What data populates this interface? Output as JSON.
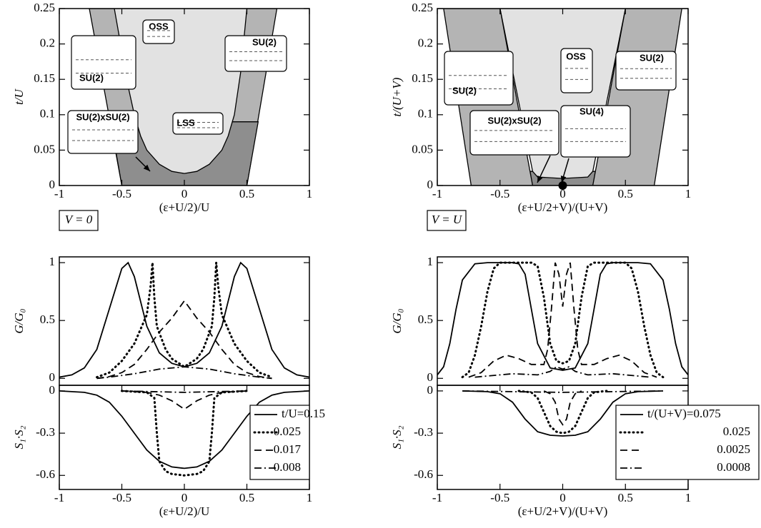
{
  "chart_data": [
    {
      "type": "phase",
      "xlim": [
        -1,
        1
      ],
      "ylim": [
        0,
        0.25
      ],
      "xticks": [
        -1,
        -0.5,
        0,
        0.5,
        1
      ],
      "yticks": [
        0,
        0.05,
        0.1,
        0.15,
        0.2,
        0.25
      ],
      "xlabel": "(ε+U/2)/U",
      "ylabel": "t/U",
      "annotation": "V = 0",
      "grid": false,
      "insets": [
        "SU(2)",
        "OSS",
        "SU(2)",
        "SU(2)xSU(2)",
        "LSS"
      ],
      "series": [
        {
          "color": "#b4b4b4",
          "x": [
            -0.76,
            -0.5,
            0.5,
            0.74
          ],
          "values": [
            0.25,
            0,
            0,
            0.25
          ]
        },
        {
          "color": "#8e8e8e",
          "x": [
            -0.5,
            0.5,
            0.59,
            -0.59
          ],
          "values": [
            0,
            0,
            0.09,
            0.09
          ]
        },
        {
          "color": "#e2e2e2",
          "x": [
            -0.56,
            -0.5,
            -0.45,
            -0.4,
            -0.35,
            -0.3,
            -0.2,
            -0.1,
            0,
            0.1,
            0.2,
            0.3,
            0.35,
            0.4,
            0.45,
            0.5
          ],
          "values": [
            0.25,
            0.19,
            0.14,
            0.1,
            0.07,
            0.05,
            0.03,
            0.02,
            0.017,
            0.02,
            0.03,
            0.05,
            0.07,
            0.1,
            0.16,
            0.25
          ]
        }
      ]
    },
    {
      "type": "phase",
      "xlim": [
        -1,
        1
      ],
      "ylim": [
        0,
        0.25
      ],
      "xticks": [
        -1,
        -0.5,
        0,
        0.5,
        1
      ],
      "yticks": [
        0,
        0.05,
        0.1,
        0.15,
        0.2,
        0.25
      ],
      "xlabel": "(ε+U/2+V)/(U+V)",
      "ylabel": "t/(U+V)",
      "annotation": "V = U",
      "grid": false,
      "insets": [
        "SU(2)",
        "OSS",
        "SU(2)",
        "SU(2)xSU(2)",
        "SU(4)"
      ],
      "marker": {
        "x": 0,
        "y": 0
      },
      "series": [
        {
          "color": "#8e8e8e",
          "x": [
            -0.245,
            0.245,
            0.26,
            -0.26
          ],
          "values": [
            0,
            0,
            0.02,
            0.02
          ]
        },
        {
          "color": "#e2e2e2",
          "x": [
            -0.5,
            -0.24,
            -0.2,
            0,
            0.2,
            0.24,
            0.5
          ],
          "values": [
            0.25,
            0.02,
            0.012,
            0.01,
            0.012,
            0.02,
            0.25
          ]
        },
        {
          "color": "#b4b4b4",
          "x": [
            -0.95,
            -0.5,
            -0.24,
            -0.73
          ],
          "values": [
            0.25,
            0.25,
            0,
            0
          ]
        },
        {
          "color": "#b4b4b4",
          "x": [
            0.5,
            0.95,
            0.73,
            0.24
          ],
          "values": [
            0.25,
            0.25,
            0,
            0
          ]
        }
      ]
    },
    {
      "type": "line",
      "xlim": [
        -1,
        1
      ],
      "ylim": [
        -0.06,
        1.05
      ],
      "yticks": [
        0,
        0.5,
        1
      ],
      "ylabel": "G/G₀",
      "grid": false,
      "series": [
        {
          "dash": "solid",
          "color": "#000000",
          "x": [
            -1,
            -0.9,
            -0.8,
            -0.7,
            -0.6,
            -0.5,
            -0.45,
            -0.4,
            -0.3,
            -0.2,
            -0.1,
            0,
            0.1,
            0.2,
            0.3,
            0.4,
            0.45,
            0.5,
            0.6,
            0.7,
            0.8,
            0.9,
            1
          ],
          "values": [
            0.01,
            0.03,
            0.09,
            0.25,
            0.6,
            0.95,
            1,
            0.88,
            0.45,
            0.22,
            0.13,
            0.1,
            0.13,
            0.22,
            0.45,
            0.88,
            1,
            0.95,
            0.6,
            0.25,
            0.09,
            0.03,
            0.01
          ]
        },
        {
          "dash": "dotted",
          "color": "#000000",
          "x": [
            -0.7,
            -0.6,
            -0.5,
            -0.4,
            -0.3,
            -0.27,
            -0.255,
            -0.24,
            -0.22,
            -0.15,
            -0.1,
            0,
            0.1,
            0.15,
            0.22,
            0.24,
            0.255,
            0.27,
            0.3,
            0.4,
            0.5,
            0.6,
            0.7
          ],
          "values": [
            0.01,
            0.05,
            0.15,
            0.3,
            0.55,
            0.8,
            1.0,
            0.7,
            0.45,
            0.25,
            0.17,
            0.1,
            0.17,
            0.25,
            0.45,
            0.7,
            1.0,
            0.8,
            0.55,
            0.3,
            0.15,
            0.05,
            0.01
          ]
        },
        {
          "dash": "dashed",
          "color": "#000000",
          "x": [
            -0.7,
            -0.6,
            -0.5,
            -0.4,
            -0.3,
            -0.2,
            -0.1,
            0,
            0.1,
            0.2,
            0.3,
            0.4,
            0.5,
            0.6,
            0.7
          ],
          "values": [
            0,
            0.015,
            0.05,
            0.12,
            0.25,
            0.4,
            0.52,
            0.67,
            0.52,
            0.4,
            0.25,
            0.12,
            0.05,
            0.015,
            0
          ]
        },
        {
          "dash": "dashdot",
          "color": "#000000",
          "x": [
            -0.7,
            -0.6,
            -0.4,
            -0.2,
            0,
            0.2,
            0.4,
            0.6,
            0.7
          ],
          "values": [
            0,
            0.01,
            0.04,
            0.08,
            0.1,
            0.08,
            0.04,
            0.01,
            0
          ]
        }
      ]
    },
    {
      "type": "line",
      "xlim": [
        -1,
        1
      ],
      "ylim": [
        -0.06,
        1.05
      ],
      "yticks": [
        0,
        0.5,
        1
      ],
      "ylabel": "G/G₀",
      "grid": false,
      "series": [
        {
          "dash": "solid",
          "color": "#000000",
          "x": [
            -1,
            -0.95,
            -0.9,
            -0.85,
            -0.8,
            -0.7,
            -0.6,
            -0.4,
            -0.35,
            -0.3,
            -0.25,
            -0.2,
            -0.1,
            0,
            0.1,
            0.2,
            0.25,
            0.3,
            0.35,
            0.4,
            0.6,
            0.7,
            0.8,
            0.85,
            0.9,
            0.95,
            1
          ],
          "values": [
            0.03,
            0.1,
            0.3,
            0.6,
            0.85,
            0.99,
            1,
            1,
            0.99,
            0.9,
            0.6,
            0.3,
            0.09,
            0.07,
            0.09,
            0.3,
            0.6,
            0.9,
            0.99,
            1,
            1,
            0.99,
            0.85,
            0.6,
            0.3,
            0.1,
            0.03
          ]
        },
        {
          "dash": "dotted",
          "color": "#000000",
          "x": [
            -0.8,
            -0.75,
            -0.7,
            -0.65,
            -0.6,
            -0.55,
            -0.5,
            -0.25,
            -0.2,
            -0.15,
            -0.1,
            -0.05,
            0,
            0.05,
            0.1,
            0.15,
            0.2,
            0.25,
            0.5,
            0.55,
            0.6,
            0.65,
            0.7,
            0.75,
            0.8
          ],
          "values": [
            0.01,
            0.05,
            0.2,
            0.45,
            0.75,
            0.95,
            1,
            1,
            0.97,
            0.7,
            0.3,
            0.15,
            0.13,
            0.15,
            0.3,
            0.7,
            0.97,
            1,
            1,
            0.95,
            0.75,
            0.45,
            0.2,
            0.05,
            0.01
          ]
        },
        {
          "dash": "dashed",
          "color": "#000000",
          "x": [
            -0.75,
            -0.65,
            -0.55,
            -0.45,
            -0.35,
            -0.25,
            -0.15,
            -0.12,
            -0.09,
            -0.06,
            -0.03,
            0,
            0.03,
            0.06,
            0.09,
            0.12,
            0.15,
            0.25,
            0.35,
            0.45,
            0.55,
            0.65,
            0.75
          ],
          "values": [
            0.01,
            0.05,
            0.15,
            0.2,
            0.17,
            0.12,
            0.12,
            0.25,
            0.6,
            1,
            0.9,
            0.62,
            0.9,
            1,
            0.6,
            0.25,
            0.12,
            0.12,
            0.17,
            0.2,
            0.15,
            0.05,
            0.01
          ]
        },
        {
          "dash": "dashdot",
          "color": "#000000",
          "x": [
            -0.7,
            -0.5,
            -0.4,
            -0.2,
            -0.1,
            -0.05,
            0,
            0.05,
            0.1,
            0.2,
            0.4,
            0.5,
            0.7
          ],
          "values": [
            0.01,
            0.03,
            0.04,
            0.03,
            0.06,
            0.1,
            0.08,
            0.1,
            0.06,
            0.03,
            0.04,
            0.03,
            0.01
          ]
        }
      ]
    },
    {
      "type": "line",
      "xlim": [
        -1,
        1
      ],
      "ylim": [
        -0.7,
        0.04
      ],
      "xticks": [
        -1,
        -0.5,
        0,
        0.5,
        1
      ],
      "yticks": [
        0,
        -0.3,
        -0.6
      ],
      "xlabel": "(ε+U/2)/U",
      "ylabel": "S₁·S₂",
      "legend": "lower right",
      "grid": false,
      "series": [
        {
          "name": "t/U=0.15",
          "dash": "solid",
          "color": "#000000",
          "x": [
            -1,
            -0.8,
            -0.7,
            -0.6,
            -0.5,
            -0.4,
            -0.3,
            -0.2,
            -0.1,
            0,
            0.1,
            0.2,
            0.3,
            0.4,
            0.5,
            0.6,
            0.7,
            0.8,
            1
          ],
          "values": [
            0,
            -0.01,
            -0.03,
            -0.08,
            -0.18,
            -0.3,
            -0.42,
            -0.5,
            -0.54,
            -0.55,
            -0.54,
            -0.5,
            -0.42,
            -0.3,
            -0.18,
            -0.08,
            -0.03,
            -0.01,
            0
          ]
        },
        {
          "name": "0.025",
          "dash": "dotted",
          "color": "#000000",
          "x": [
            -0.5,
            -0.3,
            -0.24,
            -0.22,
            -0.2,
            -0.15,
            -0.1,
            0,
            0.1,
            0.15,
            0.2,
            0.22,
            0.24,
            0.3,
            0.5
          ],
          "values": [
            0,
            -0.01,
            -0.05,
            -0.3,
            -0.5,
            -0.57,
            -0.59,
            -0.6,
            -0.59,
            -0.57,
            -0.5,
            -0.3,
            -0.05,
            -0.01,
            0
          ]
        },
        {
          "name": "0.017",
          "dash": "dashed",
          "color": "#000000",
          "x": [
            -0.5,
            -0.3,
            -0.2,
            -0.1,
            -0.05,
            0,
            0.05,
            0.1,
            0.2,
            0.3,
            0.5
          ],
          "values": [
            0,
            -0.01,
            -0.03,
            -0.07,
            -0.1,
            -0.13,
            -0.1,
            -0.07,
            -0.03,
            -0.01,
            0
          ]
        },
        {
          "name": "0.008",
          "dash": "dashdot",
          "color": "#000000",
          "x": [
            -0.5,
            0,
            0.5
          ],
          "values": [
            0,
            -0.01,
            0
          ]
        }
      ]
    },
    {
      "type": "line",
      "xlim": [
        -1,
        1
      ],
      "ylim": [
        -0.7,
        0.04
      ],
      "xticks": [
        -1,
        -0.5,
        0,
        0.5,
        1
      ],
      "yticks": [
        0,
        -0.3,
        -0.6
      ],
      "xlabel": "(ε+U/2+V)/(U+V)",
      "ylabel": "S₁·S₂",
      "legend": "lower right",
      "grid": false,
      "series": [
        {
          "name": "t/(U+V)=0.075",
          "dash": "solid",
          "color": "#000000",
          "x": [
            -0.8,
            -0.6,
            -0.5,
            -0.4,
            -0.3,
            -0.2,
            -0.1,
            0,
            0.1,
            0.2,
            0.3,
            0.4,
            0.5,
            0.6,
            0.8
          ],
          "values": [
            0,
            -0.005,
            -0.02,
            -0.08,
            -0.2,
            -0.29,
            -0.315,
            -0.32,
            -0.315,
            -0.29,
            -0.2,
            -0.08,
            -0.02,
            -0.005,
            0
          ]
        },
        {
          "name": "0.025",
          "dash": "dotted",
          "color": "#000000",
          "x": [
            -0.35,
            -0.25,
            -0.2,
            -0.15,
            -0.1,
            -0.05,
            0,
            0.05,
            0.1,
            0.15,
            0.2,
            0.25,
            0.35
          ],
          "values": [
            0,
            -0.01,
            -0.05,
            -0.15,
            -0.25,
            -0.29,
            -0.3,
            -0.29,
            -0.25,
            -0.15,
            -0.05,
            -0.01,
            0
          ]
        },
        {
          "name": "0.0025",
          "dash": "dashed",
          "color": "#000000",
          "x": [
            -0.15,
            -0.1,
            -0.06,
            -0.03,
            0,
            0.03,
            0.06,
            0.1,
            0.15
          ],
          "values": [
            0,
            -0.02,
            -0.08,
            -0.2,
            -0.24,
            -0.2,
            -0.08,
            -0.02,
            0
          ]
        },
        {
          "name": "0.0008",
          "dash": "dashdot",
          "color": "#000000",
          "x": [
            -0.8,
            0,
            0.8
          ],
          "values": [
            0,
            -0.01,
            0
          ]
        }
      ]
    }
  ]
}
